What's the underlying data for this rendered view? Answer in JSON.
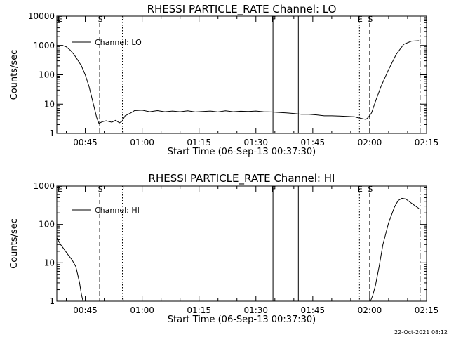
{
  "timestamp": "22-Oct-2021 08:12",
  "chart_data": [
    {
      "type": "line",
      "title": "RHESSI PARTICLE_RATE Channel: LO",
      "xlabel": "Start Time (06-Sep-13 00:37:30)",
      "ylabel": "Counts/sec",
      "yscale": "log",
      "ylim": [
        1,
        10000
      ],
      "xlim_minutes": [
        37.5,
        135
      ],
      "x_ticks": [
        {
          "label": "00:45",
          "minute": 45
        },
        {
          "label": "01:00",
          "minute": 60
        },
        {
          "label": "01:15",
          "minute": 75
        },
        {
          "label": "01:30",
          "minute": 90
        },
        {
          "label": "01:45",
          "minute": 105
        },
        {
          "label": "02:00",
          "minute": 120
        },
        {
          "label": "02:15",
          "minute": 135
        }
      ],
      "y_ticks": [
        {
          "label": "1",
          "value": 1
        },
        {
          "label": "10",
          "value": 10
        },
        {
          "label": "100",
          "value": 100
        },
        {
          "label": "1000",
          "value": 1000
        },
        {
          "label": "10000",
          "value": 10000
        }
      ],
      "legend": "Channel: LO",
      "series": [
        {
          "name": "Channel: LO",
          "x": [
            37.5,
            39,
            40,
            41,
            42,
            43,
            44,
            45,
            46,
            47,
            48,
            48.6,
            49.5,
            50.5,
            52,
            53,
            54,
            54.7,
            55.5,
            56,
            57,
            58,
            60,
            62,
            64,
            66,
            68,
            70,
            72,
            74,
            76,
            78,
            80,
            82,
            84,
            86,
            88,
            90,
            92,
            94,
            96,
            98,
            100,
            102,
            104,
            106,
            108,
            110,
            112,
            114,
            116,
            117,
            118,
            119,
            119.6,
            120.5,
            121.5,
            123,
            125,
            127,
            129,
            131,
            133
          ],
          "y": [
            1000,
            1000,
            900,
            700,
            500,
            320,
            200,
            100,
            40,
            12,
            3.5,
            2.2,
            2.5,
            2.7,
            2.4,
            2.8,
            2.3,
            2.6,
            4,
            4.3,
            5,
            6,
            6.2,
            5.5,
            6,
            5.5,
            5.8,
            5.5,
            5.9,
            5.4,
            5.6,
            5.8,
            5.4,
            5.9,
            5.5,
            5.7,
            5.6,
            5.8,
            5.5,
            5.4,
            5.2,
            5,
            4.8,
            4.5,
            4.5,
            4.3,
            4,
            4,
            3.9,
            3.8,
            3.7,
            3.4,
            3.2,
            3,
            3.5,
            5,
            12,
            40,
            150,
            500,
            1100,
            1400,
            1450
          ]
        }
      ],
      "events": [
        {
          "minute": 48.8,
          "style": "dashed",
          "label": "S"
        },
        {
          "minute": 54.8,
          "style": "dotted",
          "label": ""
        },
        {
          "minute": 94.5,
          "style": "solid",
          "label": "F"
        },
        {
          "minute": 101.2,
          "style": "solid",
          "label": ""
        },
        {
          "minute": 117.3,
          "style": "dotted",
          "label": "E"
        },
        {
          "minute": 120,
          "style": "dashed",
          "label": "S"
        },
        {
          "minute": 133.3,
          "style": "dashdot",
          "label": ""
        }
      ],
      "start_marker": "E"
    },
    {
      "type": "line",
      "title": "RHESSI PARTICLE_RATE Channel: HI",
      "xlabel": "Start Time (06-Sep-13 00:37:30)",
      "ylabel": "Counts/sec",
      "yscale": "log",
      "ylim": [
        1,
        1000
      ],
      "xlim_minutes": [
        37.5,
        135
      ],
      "x_ticks": [
        {
          "label": "00:45",
          "minute": 45
        },
        {
          "label": "01:00",
          "minute": 60
        },
        {
          "label": "01:15",
          "minute": 75
        },
        {
          "label": "01:30",
          "minute": 90
        },
        {
          "label": "01:45",
          "minute": 105
        },
        {
          "label": "02:00",
          "minute": 120
        },
        {
          "label": "02:15",
          "minute": 135
        }
      ],
      "y_ticks": [
        {
          "label": "1",
          "value": 1
        },
        {
          "label": "10",
          "value": 10
        },
        {
          "label": "100",
          "value": 100
        },
        {
          "label": "1000",
          "value": 1000
        }
      ],
      "legend": "Channel: HI",
      "series": [
        {
          "name": "Channel: HI",
          "x": [
            37.5,
            38.5,
            39.5,
            40.5,
            41.5,
            42.5,
            43,
            43.5,
            44,
            44.4,
            120.2,
            120.8,
            121.5,
            122.5,
            123.5,
            125,
            126.5,
            127.5,
            128.5,
            129.5,
            130.5,
            131.5,
            133
          ],
          "y": [
            45,
            30,
            22,
            16,
            12,
            8,
            5,
            3,
            1.5,
            1,
            1,
            1.4,
            2.5,
            8,
            30,
            110,
            280,
            420,
            480,
            460,
            390,
            330,
            260
          ]
        }
      ],
      "events": [
        {
          "minute": 48.8,
          "style": "dashed",
          "label": "S"
        },
        {
          "minute": 54.8,
          "style": "dotted",
          "label": ""
        },
        {
          "minute": 94.5,
          "style": "solid",
          "label": "F"
        },
        {
          "minute": 101.2,
          "style": "solid",
          "label": ""
        },
        {
          "minute": 117.3,
          "style": "dotted",
          "label": "E"
        },
        {
          "minute": 120,
          "style": "dashed",
          "label": "S"
        },
        {
          "minute": 133.3,
          "style": "dashdot",
          "label": ""
        }
      ],
      "start_marker": "E"
    }
  ]
}
